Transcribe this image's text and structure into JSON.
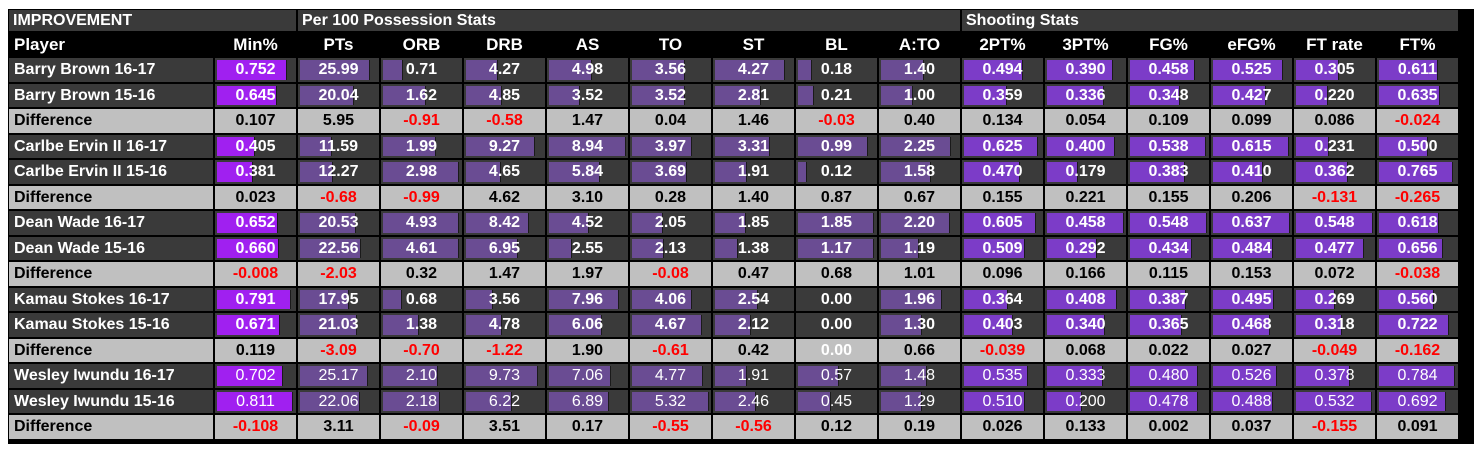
{
  "sections": [
    {
      "label": "IMPROVEMENT",
      "col_start": 0,
      "col_end": 1
    },
    {
      "label": "Per 100 Possession Stats",
      "col_start": 2,
      "col_end": 9
    },
    {
      "label": "Shooting Stats",
      "col_start": 10,
      "col_end": 15
    }
  ],
  "columns": [
    "Player",
    "Min%",
    "PTs",
    "ORB",
    "DRB",
    "AS",
    "TO",
    "ST",
    "BL",
    "A:TO",
    "2PT%",
    "3PT%",
    "FG%",
    "eFG%",
    "FT rate",
    "FT%"
  ],
  "colors": {
    "sheet_bg": "#000000",
    "header_bg": "#3a3a3a",
    "row_bg": "#3a3a3a",
    "diff_bg": "#c0c0c0",
    "bar_minutes": "#a020f0",
    "bar_stats": "#6a4c93",
    "bar_shooting": "#7c3cc8",
    "text_light": "#ffffff",
    "text_dark": "#000000",
    "negative": "#ff0000"
  },
  "players": [
    {
      "rows": [
        {
          "name": "Barry Brown 16-17",
          "values": [
            "0.752",
            "25.99",
            "0.71",
            "4.27",
            "4.98",
            "3.56",
            "4.27",
            "0.18",
            "1.40",
            "0.494",
            "0.390",
            "0.458",
            "0.525",
            "0.305",
            "0.611"
          ],
          "fills": [
            0.9,
            0.9,
            0.25,
            0.4,
            0.55,
            0.68,
            0.9,
            0.17,
            0.55,
            0.75,
            0.85,
            0.83,
            0.9,
            0.55,
            0.75
          ]
        },
        {
          "name": "Barry Brown 15-16",
          "values": [
            "0.645",
            "20.04",
            "1.62",
            "4.85",
            "3.52",
            "3.52",
            "2.81",
            "0.21",
            "1.00",
            "0.359",
            "0.336",
            "0.348",
            "0.427",
            "0.220",
            "0.635"
          ],
          "fills": [
            0.77,
            0.69,
            0.55,
            0.46,
            0.39,
            0.67,
            0.59,
            0.19,
            0.4,
            0.55,
            0.73,
            0.63,
            0.67,
            0.4,
            0.78
          ]
        }
      ],
      "difference": [
        "0.107",
        "5.95",
        "-0.91",
        "-0.58",
        "1.47",
        "0.04",
        "1.46",
        "-0.03",
        "0.40",
        "0.134",
        "0.054",
        "0.109",
        "0.099",
        "0.086",
        "-0.024"
      ]
    },
    {
      "rows": [
        {
          "name": "Carlbe Ervin II 16-17",
          "values": [
            "0.405",
            "11.59",
            "1.99",
            "9.27",
            "8.94",
            "3.97",
            "3.31",
            "0.99",
            "2.25",
            "0.625",
            "0.400",
            "0.538",
            "0.615",
            "0.231",
            "0.500"
          ],
          "fills": [
            0.48,
            0.4,
            0.67,
            0.88,
            0.99,
            0.76,
            0.7,
            0.9,
            0.9,
            0.95,
            0.87,
            0.98,
            0.97,
            0.42,
            0.62
          ]
        },
        {
          "name": "Carlbe Ervin II 15-16",
          "values": [
            "0.381",
            "12.27",
            "2.98",
            "4.65",
            "5.84",
            "3.69",
            "1.91",
            "0.12",
            "1.58",
            "0.470",
            "0.179",
            "0.383",
            "0.410",
            "0.362",
            "0.765"
          ],
          "fills": [
            0.45,
            0.42,
            0.98,
            0.44,
            0.65,
            0.7,
            0.4,
            0.11,
            0.63,
            0.72,
            0.39,
            0.7,
            0.64,
            0.66,
            0.95
          ]
        }
      ],
      "difference": [
        "0.023",
        "-0.68",
        "-0.99",
        "4.62",
        "3.10",
        "0.28",
        "1.40",
        "0.87",
        "0.67",
        "0.155",
        "0.221",
        "0.155",
        "0.206",
        "-0.131",
        "-0.265"
      ]
    },
    {
      "rows": [
        {
          "name": "Dean Wade 16-17",
          "values": [
            "0.652",
            "20.53",
            "4.93",
            "8.42",
            "4.52",
            "2.05",
            "1.85",
            "1.85",
            "2.20",
            "0.605",
            "0.458",
            "0.548",
            "0.637",
            "0.548",
            "0.618"
          ],
          "fills": [
            0.78,
            0.71,
            0.98,
            0.8,
            0.5,
            0.39,
            0.39,
            0.98,
            0.88,
            0.92,
            0.99,
            0.99,
            0.99,
            0.99,
            0.77
          ]
        },
        {
          "name": "Dean Wade 15-16",
          "values": [
            "0.660",
            "22.56",
            "4.61",
            "6.95",
            "2.55",
            "2.13",
            "1.38",
            "1.17",
            "1.19",
            "0.509",
            "0.292",
            "0.434",
            "0.484",
            "0.477",
            "0.656"
          ],
          "fills": [
            0.79,
            0.78,
            0.98,
            0.66,
            0.29,
            0.4,
            0.29,
            0.98,
            0.48,
            0.78,
            0.64,
            0.79,
            0.76,
            0.87,
            0.82
          ]
        }
      ],
      "difference": [
        "-0.008",
        "-2.03",
        "0.32",
        "1.47",
        "1.97",
        "-0.08",
        "0.47",
        "0.68",
        "1.01",
        "0.096",
        "0.166",
        "0.115",
        "0.153",
        "0.072",
        "-0.038"
      ]
    },
    {
      "rows": [
        {
          "name": "Kamau Stokes 16-17",
          "values": [
            "0.791",
            "17.95",
            "0.68",
            "3.56",
            "7.96",
            "4.06",
            "2.54",
            "0.00",
            "1.96",
            "0.364",
            "0.408",
            "0.387",
            "0.495",
            "0.269",
            "0.560"
          ],
          "fills": [
            0.95,
            0.62,
            0.23,
            0.34,
            0.89,
            0.77,
            0.54,
            0.0,
            0.78,
            0.56,
            0.89,
            0.71,
            0.78,
            0.49,
            0.7
          ]
        },
        {
          "name": "Kamau Stokes 15-16",
          "values": [
            "0.671",
            "21.03",
            "1.38",
            "4.78",
            "6.06",
            "4.67",
            "2.12",
            "0.00",
            "1.30",
            "0.403",
            "0.340",
            "0.365",
            "0.468",
            "0.318",
            "0.722"
          ],
          "fills": [
            0.81,
            0.73,
            0.46,
            0.45,
            0.68,
            0.89,
            0.45,
            0.0,
            0.52,
            0.62,
            0.74,
            0.66,
            0.73,
            0.58,
            0.9
          ]
        }
      ],
      "difference": [
        "0.119",
        "-3.09",
        "-0.70",
        "-1.22",
        "1.90",
        "-0.61",
        "0.42",
        "0.00",
        "0.66",
        "-0.039",
        "0.068",
        "0.022",
        "0.027",
        "-0.049",
        "-0.162"
      ]
    },
    {
      "rows": [
        {
          "name": "Wesley Iwundu 16-17",
          "values": [
            "0.702",
            "25.17",
            "2.10",
            "9.73",
            "7.06",
            "4.77",
            "1.91",
            "0.57",
            "1.48",
            "0.535",
            "0.333",
            "0.480",
            "0.526",
            "0.378",
            "0.784"
          ],
          "fills": [
            0.84,
            0.87,
            0.7,
            0.92,
            0.79,
            0.91,
            0.4,
            0.52,
            0.59,
            0.82,
            0.72,
            0.87,
            0.82,
            0.69,
            0.98
          ]
        },
        {
          "name": "Wesley Iwundu 15-16",
          "values": [
            "0.811",
            "22.06",
            "2.18",
            "6.22",
            "6.89",
            "5.32",
            "2.46",
            "0.45",
            "1.29",
            "0.510",
            "0.200",
            "0.478",
            "0.488",
            "0.532",
            "0.692"
          ],
          "fills": [
            0.97,
            0.76,
            0.73,
            0.59,
            0.77,
            0.99,
            0.52,
            0.41,
            0.52,
            0.78,
            0.44,
            0.87,
            0.76,
            0.97,
            0.86
          ]
        }
      ],
      "difference": [
        "-0.108",
        "3.11",
        "-0.09",
        "3.51",
        "0.17",
        "-0.55",
        "-0.56",
        "0.12",
        "0.19",
        "0.026",
        "0.133",
        "0.002",
        "0.037",
        "-0.155",
        "0.091"
      ]
    }
  ],
  "difference_label": "Difference"
}
